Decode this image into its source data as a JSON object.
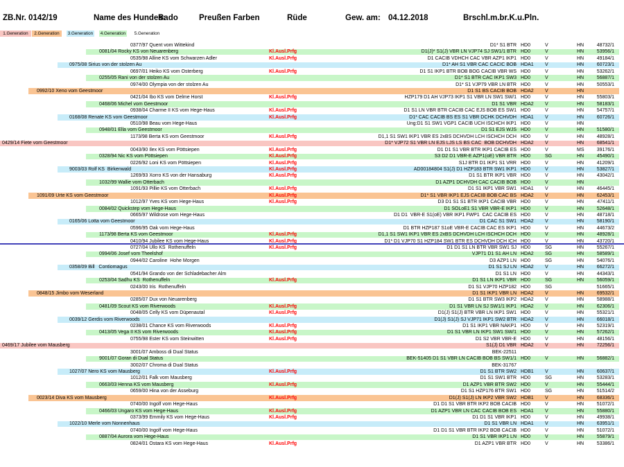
{
  "header": {
    "zb_nr": "ZB.Nr. 0142/19",
    "name_label": "Name des Hundes:",
    "dog_name": "Bado",
    "dog_kennel": "Preußen Farben",
    "sex": "Rüde",
    "whelped_label": "Gew. am:",
    "whelped_date": "04.12.2018",
    "coat_code": "Brschl.m.br.K.u.Pln."
  },
  "tabs": [
    {
      "label": "1.Generation",
      "color": "#f9c6c2"
    },
    {
      "label": "2.Generation",
      "color": "#fac493"
    },
    {
      "label": "3.Generation",
      "color": "#c7ecf9"
    },
    {
      "label": "4.Generation",
      "color": "#c8f6c8"
    },
    {
      "label": "5.Generation",
      "color": "#ffffff"
    }
  ],
  "colors": {
    "gen1": "#f9c6c2",
    "gen2": "#fac493",
    "gen3": "#c7ecf9",
    "gen4": "#c8f6c8",
    "klausl": "#ff0000",
    "divider": "#4141b9"
  },
  "pedigree": {
    "klausl_label": "Kl.Ausl.Prfg",
    "rows": [
      {
        "gen": 5,
        "name": "0377/97 Quent vom Wittekind",
        "kl": false,
        "titles": "D1* S1 BTR",
        "hd": "HD0",
        "form": "V",
        "club": "HN",
        "num": "48732/1"
      },
      {
        "gen": 4,
        "name": "0081/04 Rocky KS von Neuarenberg",
        "kl": true,
        "titles": "D1(J)* S1(J) VBR LN VJP74 SJ SW1/1 BTR",
        "hd": "HD0",
        "form": "V",
        "club": "HN",
        "num": "53956/1"
      },
      {
        "gen": 5,
        "name": "0535/98 Alline KS vom Schwarzen Adler",
        "kl": true,
        "titles": "D1 CACIB VDHCH CAC VBR AZP1 IKP1",
        "hd": "HD0",
        "form": "V",
        "club": "HN",
        "num": "49184/1"
      },
      {
        "gen": 3,
        "name": "0975/08 Sirius von der stolzen Au",
        "kl": false,
        "titles": "D1* AH S1 VBR CAC CACIC BOB",
        "hd": "HDA1",
        "form": "V",
        "club": "HN",
        "num": "60723/1"
      },
      {
        "gen": 5,
        "name": "0697/01 Heiko KS vom Osterberg",
        "kl": true,
        "titles": "D1 S1 IKP1 BTR BOB BOG CACIB VBR WS",
        "hd": "HD0",
        "form": "V",
        "club": "HN",
        "num": "53262/1"
      },
      {
        "gen": 4,
        "name": "0255/05 Rani von der stolzen Au",
        "kl": false,
        "titles": "D1* S1 BTR CAC IKP1 SW3",
        "hd": "HD0",
        "form": "V",
        "club": "HN",
        "num": "56887/1"
      },
      {
        "gen": 5,
        "name": "0974/00 Olympia von der stolzen Au",
        "kl": false,
        "titles": "D1* S1 VJP79 VBR LN BTR",
        "hd": "HD0",
        "form": "V",
        "club": "HN",
        "num": "50553/1"
      },
      {
        "gen": 2,
        "name": "0992/10 Xeno vom Geestmoor",
        "kl": false,
        "titles": "D1 S1 BS CACIB BOB",
        "hd": "HDA2",
        "form": "V",
        "club": "HN",
        "num": ""
      },
      {
        "gen": 5,
        "name": "0421/04 Ibo KS vom Delme Horst",
        "kl": true,
        "titles": "HZP179 D1 AH VJP73 IKP1 S1 VBR LN SW1 SW/1",
        "hd": "HD0",
        "form": "V",
        "club": "HN",
        "num": "55803/1"
      },
      {
        "gen": 4,
        "name": "0468/06 Michel vom Geestmoor",
        "kl": false,
        "titles": "D1 S1 VBR",
        "hd": "HDA2",
        "form": "V",
        "club": "HN",
        "num": "58183/1"
      },
      {
        "gen": 5,
        "name": "0938/04 Charme II KS vom Hege-Haus",
        "kl": true,
        "titles": "D1 S1 LN VBR BTR CACIB CAC EJS BOB ES SW1",
        "hd": "HD0",
        "form": "V",
        "club": "HN",
        "num": "54757/1"
      },
      {
        "gen": 3,
        "name": "0168/08 Renate KS vom Geestmoor",
        "kl": true,
        "titles": "D1* CAC CACIB BS ES S1 VBR DCHK DCHVDH",
        "hd": "HDA1",
        "form": "V",
        "club": "HN",
        "num": "60726/1"
      },
      {
        "gen": 5,
        "name": "0510/98 Beau vom Hege-Haus",
        "kl": false,
        "titles": "Ung:D1 S1 SW1 VGP1 CACIB UCH ISCHCH IKP1",
        "hd": "HD0",
        "form": "V",
        "club": "HN",
        "num": ""
      },
      {
        "gen": 4,
        "name": "0948/01 Ella vom Geestmoor",
        "kl": false,
        "titles": "D1 S1 EJS WJS",
        "hd": "HD0",
        "form": "V",
        "club": "HN",
        "num": "51580/1"
      },
      {
        "gen": 5,
        "name": "1173/98 Berta KS vom Geestmoor",
        "kl": true,
        "titles": "D1,1 S1 SW1 IKP1 VBR ES 2xBS DCHVDH LCH ISCHCH DCH",
        "hd": "HD0",
        "form": "V",
        "club": "HN",
        "num": "48928/1"
      },
      {
        "gen": 1,
        "name": "0429/14 Fiete vom Geestmoor",
        "kl": false,
        "titles": "D1* VJP72 S1 VBR LN EJS LJS LS BS CAC  BOB DCHVDH",
        "hd": "HDA2",
        "form": "V",
        "club": "HN",
        "num": "68541/1"
      },
      {
        "gen": 5,
        "name": "0043/90 Ilex KS vom Pöttsiepen",
        "kl": true,
        "titles": "D1 D1 S1 VBR BTR IKP1 CACIB ES",
        "hd": "HD0",
        "form": "V",
        "club": "MS",
        "num": "39176/1"
      },
      {
        "gen": 4,
        "name": "0328/94 Nic KS vom Pöttsiepen",
        "kl": true,
        "titles": "S3 D2 D1 VBR-E AZP1(oE) VBR BTR",
        "hd": "HD0",
        "form": "SG",
        "club": "HN",
        "num": "45490/1"
      },
      {
        "gen": 5,
        "name": "0226/92 Loni KS vom Pöttsiepen",
        "kl": true,
        "titles": "S1J BTR D1 IKP1 S1 VRR",
        "hd": "HD0",
        "form": "V",
        "club": "HN",
        "num": "41209/1"
      },
      {
        "gen": 3,
        "name": "9003/03 Rolf KS  Birkenwald",
        "kl": true,
        "titles": "AD00184804 S1(J) D1 HZP183 BTR SW1 IKP1",
        "hd": "HD0",
        "form": "V",
        "club": "HN",
        "num": "53827/1"
      },
      {
        "gen": 5,
        "name": "1269/93 Xorro KS von der Hansaburg",
        "kl": true,
        "titles": "D1 S1 BTR IKP1 VBR",
        "hd": "HD0",
        "form": "V",
        "club": "HN",
        "num": "43042/1"
      },
      {
        "gen": 4,
        "name": "1032/99 Wallie vom Otterbach",
        "kl": false,
        "titles": "D1 AZP1 DCHVDH CAC CACIB BOB",
        "hd": "HD0",
        "form": "V",
        "club": "HN",
        "num": ""
      },
      {
        "gen": 5,
        "name": "1091/93 Pillie KS vom Otterbach",
        "kl": true,
        "titles": "D1 S1 IKP1 VBR SW1",
        "hd": "HDA1",
        "form": "V",
        "club": "HN",
        "num": "46445/1"
      },
      {
        "gen": 2,
        "name": "1091/09 Urte KS vom Geestmoor",
        "kl": true,
        "titles": "D1* S1 VBR IKP1 EJS CACIB BOB CAC BS",
        "hd": "HDA2",
        "form": "V",
        "club": "HN",
        "num": "62453/1"
      },
      {
        "gen": 5,
        "name": "1012/97 Yves KS vom Hege-Haus",
        "kl": true,
        "titles": "D3 D1 S1 S1 BTR IKP1 CACIB VBR",
        "hd": "HD0",
        "form": "V",
        "club": "HN",
        "num": "47411/1"
      },
      {
        "gen": 4,
        "name": "0084/02 Quickstep vom Hege-Haus",
        "kl": false,
        "titles": "D1 SOLoE1 S1 VBR VBR-E IKP1",
        "hd": "HD0",
        "form": "V",
        "club": "HN",
        "num": "52648/1"
      },
      {
        "gen": 5,
        "name": "0665/97 Wildrose vom Hege-Haus",
        "kl": false,
        "titles": "D1 D1  VBR-E S1(oE) VBR IKP1 FWP1  CAC CACIB ES",
        "hd": "HD0",
        "form": "V",
        "club": "HN",
        "num": "48718/1"
      },
      {
        "gen": 3,
        "name": "0165/06 Lotta vom Geestmoor",
        "kl": false,
        "titles": "D1 CAC S1 SW1",
        "hd": "HDA2",
        "form": "V",
        "club": "HN",
        "num": "58190/1"
      },
      {
        "gen": 5,
        "name": "0596/95 Oak vom Hege-Haus",
        "kl": false,
        "titles": "D1 BTR HZP187 S1oE VBR-E CACIB CAC ES IKP1",
        "hd": "HD0",
        "form": "V",
        "club": "HN",
        "num": "44673/2"
      },
      {
        "gen": 4,
        "name": "1173/98 Berta KS vom Geestmoor",
        "kl": true,
        "titles": "D1,1 S1 SW1 IKP1 VBR ES 2xBS DCHVDH LCH ISCHCH DCH",
        "hd": "HD0",
        "form": "V",
        "club": "HN",
        "num": "48928/1"
      },
      {
        "gen": 5,
        "name": "0410/94 Jubilee KS vom Hege-Haus",
        "kl": true,
        "titles": "D1* D1 VJP70 S1 HZP184 SW1 BTR ES DCHVDH DCH ICH",
        "hd": "HD0",
        "form": "V",
        "club": "HN",
        "num": "43720/1"
      },
      {
        "gen": 5,
        "name": "0727/04 Ullo KS  Rothenuffeln",
        "kl": true,
        "titles": "D1 D1 S1 LN BTR VBR SW1 SJ",
        "hd": "HD0",
        "form": "SG",
        "club": "HN",
        "num": "55267/1"
      },
      {
        "gen": 4,
        "name": "0994/06 Josef vom Theelshof",
        "kl": false,
        "titles": "VJP71 D1 S1 AH LN",
        "hd": "HDA2",
        "form": "SG",
        "club": "HN",
        "num": "58589/1"
      },
      {
        "gen": 5,
        "name": "0944/02 Caroline  Hohe Morgen",
        "kl": false,
        "titles": "D3 AZP1 LN",
        "hd": "HD0",
        "form": "SG",
        "club": "HN",
        "num": "54076/1"
      },
      {
        "gen": 3,
        "name": "0358/09 Bill   Contiomagus",
        "kl": false,
        "titles": "D1 S1 SJ LN",
        "hd": "HDA2",
        "form": "V",
        "club": "HN",
        "num": "66272/1"
      },
      {
        "gen": 5,
        "name": "0541/94 Grando von der Schladebacher Alm",
        "kl": false,
        "titles": "D1 S1 LN",
        "hd": "HD0",
        "form": "V",
        "club": "HN",
        "num": "44343/1"
      },
      {
        "gen": 4,
        "name": "0253/04 Sadhu KS  Rothenuffeln",
        "kl": true,
        "titles": "D1 S1 LN IKP1 VBR",
        "hd": "HD0",
        "form": "SG",
        "club": "HN",
        "num": "56059/1"
      },
      {
        "gen": 5,
        "name": "0243/00 Iris  Rothenuffeln",
        "kl": false,
        "titles": "D1 S1 VJP70 HZP182",
        "hd": "HD0",
        "form": "SG",
        "club": "",
        "num": "51665/1"
      },
      {
        "gen": 2,
        "name": "0848/15 Jimbo vom Weserland",
        "kl": false,
        "titles": "D1 S1 IKP1 VBR LN",
        "hd": "HDA2",
        "form": "V",
        "club": "HN",
        "num": "69532/1"
      },
      {
        "gen": 5,
        "name": "0285/07 Dux von Neuarenberg",
        "kl": false,
        "titles": "D1 S1 BTR SW3 IKP2",
        "hd": "HDA2",
        "form": "V",
        "club": "HN",
        "num": "58988/1"
      },
      {
        "gen": 4,
        "name": "0481/09 Scout KS vom Riverwoods",
        "kl": true,
        "titles": "D1 S1 VBR LN SJ SW1/1 IKP1",
        "hd": "HDA2",
        "form": "V",
        "club": "HN",
        "num": "62306/1"
      },
      {
        "gen": 5,
        "name": "0048/05 Celly KS vom Düpenautal",
        "kl": true,
        "titles": "D1(J) S1(J) BTR VBR LN IKP1 SW1",
        "hd": "HD0",
        "form": "V",
        "club": "HN",
        "num": "55321/1"
      },
      {
        "gen": 3,
        "name": "0039/12 Gerdis vom Riverwoods",
        "kl": false,
        "titles": "D1(J) S1(J) SJ VJP71 IKP1 SW2 BTR",
        "hd": "HDA2",
        "form": "V",
        "club": "HN",
        "num": "66018/1"
      },
      {
        "gen": 5,
        "name": "0238/01 Chance KS vom Riverwoods",
        "kl": true,
        "titles": "D1 S1 IKP1 VBR NAKP1",
        "hd": "HD0",
        "form": "V",
        "club": "HN",
        "num": "52319/1"
      },
      {
        "gen": 4,
        "name": "0413/05 Vega II KS vom Riverwoods",
        "kl": true,
        "titles": "D1 S1 VBR LN IKP1 SW1 SW/1",
        "hd": "HD0",
        "form": "V",
        "club": "HN",
        "num": "57262/1"
      },
      {
        "gen": 5,
        "name": "0755/98 Ester KS vom Steinwitten",
        "kl": true,
        "titles": "D1 S2 VBR VBR-E",
        "hd": "HD0",
        "form": "V",
        "club": "HN",
        "num": "48156/1"
      },
      {
        "gen": 1,
        "name": "0469/17 Jubilee vom Mausberg",
        "kl": false,
        "titles": "S1(J) D1 VBR",
        "hd": "HDA2",
        "form": "V",
        "club": "HN",
        "num": "72256/1"
      },
      {
        "gen": 5,
        "name": "3001/07 Amboss di Dual Status",
        "kl": false,
        "titles": "BEK-22511",
        "hd": "",
        "form": "",
        "club": "",
        "num": ""
      },
      {
        "gen": 4,
        "name": "9001/07 Goran di Dual Status",
        "kl": false,
        "titles": "BEK-51405 D1 S1 VBR LN CACIB BOB BS SW1/1",
        "hd": "HD0",
        "form": "V",
        "club": "HN",
        "num": "56882/1"
      },
      {
        "gen": 5,
        "name": "3002/07 Chroma di Dual Status",
        "kl": false,
        "titles": "BEK-31767",
        "hd": "",
        "form": "",
        "club": "",
        "num": ""
      },
      {
        "gen": 3,
        "name": "1027/07 Nero KS vom Mausberg",
        "kl": true,
        "titles": "D1 S1 BTR SW2",
        "hd": "HDB1",
        "form": "V",
        "club": "HN",
        "num": "60637/1"
      },
      {
        "gen": 5,
        "name": "1012/01 Falk vom Mausberg",
        "kl": false,
        "titles": "D1 S1 SW1 BTR",
        "hd": "HD0",
        "form": "SG",
        "club": "HN",
        "num": "53283/1"
      },
      {
        "gen": 4,
        "name": "0663/03 Henna KS vom Mausberg",
        "kl": true,
        "titles": "D1 AZP1 VBR BTR SW2",
        "hd": "HD0",
        "form": "V",
        "club": "HN",
        "num": "55444/1"
      },
      {
        "gen": 5,
        "name": "0659/00 Hina von der Asseburg",
        "kl": false,
        "titles": "D1 S1 HZP176 BTR SW1",
        "hd": "HD0",
        "form": "SG",
        "club": "HN",
        "num": "51514/2"
      },
      {
        "gen": 2,
        "name": "0023/14 Diva KS vom Mausberg",
        "kl": true,
        "titles": "D1(J) S1(J) LN IKP2 VBR SW2",
        "hd": "HDB1",
        "form": "V",
        "club": "HN",
        "num": "68336/1"
      },
      {
        "gen": 5,
        "name": "0740/00 Ingolf vom Hege-Haus",
        "kl": false,
        "titles": "D1 D1 S1 VBR BTR IKP2 BOB CACIB",
        "hd": "HD0",
        "form": "V",
        "club": "HN",
        "num": "51072/1"
      },
      {
        "gen": 4,
        "name": "0466/03 Ungaro KS vom Hege-Haus",
        "kl": true,
        "titles": "D1 AZP1 VBR LN CAC CACIB BOB ES",
        "hd": "HDA1",
        "form": "V",
        "club": "HN",
        "num": "55880/1"
      },
      {
        "gen": 5,
        "name": "0373/99 Emmily KS vom Hege-Haus",
        "kl": true,
        "titles": "D1 D1 S1 VBR IKP1",
        "hd": "HD0",
        "form": "V",
        "club": "HN",
        "num": "49938/1"
      },
      {
        "gen": 3,
        "name": "1022/10 Merle vom Nonnenhaus",
        "kl": false,
        "titles": "D1 S1 VBR LN",
        "hd": "HDA1",
        "form": "V",
        "club": "HN",
        "num": "63951/1"
      },
      {
        "gen": 5,
        "name": "0740/00 Ingolf vom Hege-Haus",
        "kl": false,
        "titles": "D1 D1 S1 VBR BTR IKP2 BOB CACIB",
        "hd": "HD0",
        "form": "V",
        "club": "HN",
        "num": "51072/1"
      },
      {
        "gen": 4,
        "name": "0887/04 Aurora vom Hege-Haus",
        "kl": false,
        "titles": "D1 S1 VBR IKP1 LN",
        "hd": "HD0",
        "form": "V",
        "club": "HN",
        "num": "55879/1"
      },
      {
        "gen": 5,
        "name": "0824/01 Ostara KS vom Hege-Haus",
        "kl": true,
        "titles": "D1 AZP1 VBR BTR",
        "hd": "HD0",
        "form": "V",
        "club": "HN",
        "num": "53386/1"
      }
    ]
  }
}
